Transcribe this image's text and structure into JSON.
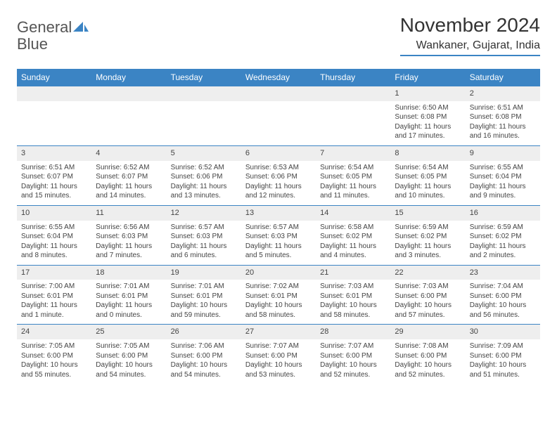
{
  "logo": {
    "text1": "General",
    "text2": "Blue"
  },
  "title": "November 2024",
  "location": "Wankaner, Gujarat, India",
  "colors": {
    "accent": "#3b84c4",
    "header_text": "#ffffff",
    "daynum_bg": "#eeeeee",
    "body_text": "#444444",
    "title_text": "#333333"
  },
  "weekdays": [
    "Sunday",
    "Monday",
    "Tuesday",
    "Wednesday",
    "Thursday",
    "Friday",
    "Saturday"
  ],
  "weeks": [
    [
      null,
      null,
      null,
      null,
      null,
      {
        "n": "1",
        "sunrise": "Sunrise: 6:50 AM",
        "sunset": "Sunset: 6:08 PM",
        "daylight": "Daylight: 11 hours and 17 minutes."
      },
      {
        "n": "2",
        "sunrise": "Sunrise: 6:51 AM",
        "sunset": "Sunset: 6:08 PM",
        "daylight": "Daylight: 11 hours and 16 minutes."
      }
    ],
    [
      {
        "n": "3",
        "sunrise": "Sunrise: 6:51 AM",
        "sunset": "Sunset: 6:07 PM",
        "daylight": "Daylight: 11 hours and 15 minutes."
      },
      {
        "n": "4",
        "sunrise": "Sunrise: 6:52 AM",
        "sunset": "Sunset: 6:07 PM",
        "daylight": "Daylight: 11 hours and 14 minutes."
      },
      {
        "n": "5",
        "sunrise": "Sunrise: 6:52 AM",
        "sunset": "Sunset: 6:06 PM",
        "daylight": "Daylight: 11 hours and 13 minutes."
      },
      {
        "n": "6",
        "sunrise": "Sunrise: 6:53 AM",
        "sunset": "Sunset: 6:06 PM",
        "daylight": "Daylight: 11 hours and 12 minutes."
      },
      {
        "n": "7",
        "sunrise": "Sunrise: 6:54 AM",
        "sunset": "Sunset: 6:05 PM",
        "daylight": "Daylight: 11 hours and 11 minutes."
      },
      {
        "n": "8",
        "sunrise": "Sunrise: 6:54 AM",
        "sunset": "Sunset: 6:05 PM",
        "daylight": "Daylight: 11 hours and 10 minutes."
      },
      {
        "n": "9",
        "sunrise": "Sunrise: 6:55 AM",
        "sunset": "Sunset: 6:04 PM",
        "daylight": "Daylight: 11 hours and 9 minutes."
      }
    ],
    [
      {
        "n": "10",
        "sunrise": "Sunrise: 6:55 AM",
        "sunset": "Sunset: 6:04 PM",
        "daylight": "Daylight: 11 hours and 8 minutes."
      },
      {
        "n": "11",
        "sunrise": "Sunrise: 6:56 AM",
        "sunset": "Sunset: 6:03 PM",
        "daylight": "Daylight: 11 hours and 7 minutes."
      },
      {
        "n": "12",
        "sunrise": "Sunrise: 6:57 AM",
        "sunset": "Sunset: 6:03 PM",
        "daylight": "Daylight: 11 hours and 6 minutes."
      },
      {
        "n": "13",
        "sunrise": "Sunrise: 6:57 AM",
        "sunset": "Sunset: 6:03 PM",
        "daylight": "Daylight: 11 hours and 5 minutes."
      },
      {
        "n": "14",
        "sunrise": "Sunrise: 6:58 AM",
        "sunset": "Sunset: 6:02 PM",
        "daylight": "Daylight: 11 hours and 4 minutes."
      },
      {
        "n": "15",
        "sunrise": "Sunrise: 6:59 AM",
        "sunset": "Sunset: 6:02 PM",
        "daylight": "Daylight: 11 hours and 3 minutes."
      },
      {
        "n": "16",
        "sunrise": "Sunrise: 6:59 AM",
        "sunset": "Sunset: 6:02 PM",
        "daylight": "Daylight: 11 hours and 2 minutes."
      }
    ],
    [
      {
        "n": "17",
        "sunrise": "Sunrise: 7:00 AM",
        "sunset": "Sunset: 6:01 PM",
        "daylight": "Daylight: 11 hours and 1 minute."
      },
      {
        "n": "18",
        "sunrise": "Sunrise: 7:01 AM",
        "sunset": "Sunset: 6:01 PM",
        "daylight": "Daylight: 11 hours and 0 minutes."
      },
      {
        "n": "19",
        "sunrise": "Sunrise: 7:01 AM",
        "sunset": "Sunset: 6:01 PM",
        "daylight": "Daylight: 10 hours and 59 minutes."
      },
      {
        "n": "20",
        "sunrise": "Sunrise: 7:02 AM",
        "sunset": "Sunset: 6:01 PM",
        "daylight": "Daylight: 10 hours and 58 minutes."
      },
      {
        "n": "21",
        "sunrise": "Sunrise: 7:03 AM",
        "sunset": "Sunset: 6:01 PM",
        "daylight": "Daylight: 10 hours and 58 minutes."
      },
      {
        "n": "22",
        "sunrise": "Sunrise: 7:03 AM",
        "sunset": "Sunset: 6:00 PM",
        "daylight": "Daylight: 10 hours and 57 minutes."
      },
      {
        "n": "23",
        "sunrise": "Sunrise: 7:04 AM",
        "sunset": "Sunset: 6:00 PM",
        "daylight": "Daylight: 10 hours and 56 minutes."
      }
    ],
    [
      {
        "n": "24",
        "sunrise": "Sunrise: 7:05 AM",
        "sunset": "Sunset: 6:00 PM",
        "daylight": "Daylight: 10 hours and 55 minutes."
      },
      {
        "n": "25",
        "sunrise": "Sunrise: 7:05 AM",
        "sunset": "Sunset: 6:00 PM",
        "daylight": "Daylight: 10 hours and 54 minutes."
      },
      {
        "n": "26",
        "sunrise": "Sunrise: 7:06 AM",
        "sunset": "Sunset: 6:00 PM",
        "daylight": "Daylight: 10 hours and 54 minutes."
      },
      {
        "n": "27",
        "sunrise": "Sunrise: 7:07 AM",
        "sunset": "Sunset: 6:00 PM",
        "daylight": "Daylight: 10 hours and 53 minutes."
      },
      {
        "n": "28",
        "sunrise": "Sunrise: 7:07 AM",
        "sunset": "Sunset: 6:00 PM",
        "daylight": "Daylight: 10 hours and 52 minutes."
      },
      {
        "n": "29",
        "sunrise": "Sunrise: 7:08 AM",
        "sunset": "Sunset: 6:00 PM",
        "daylight": "Daylight: 10 hours and 52 minutes."
      },
      {
        "n": "30",
        "sunrise": "Sunrise: 7:09 AM",
        "sunset": "Sunset: 6:00 PM",
        "daylight": "Daylight: 10 hours and 51 minutes."
      }
    ]
  ]
}
